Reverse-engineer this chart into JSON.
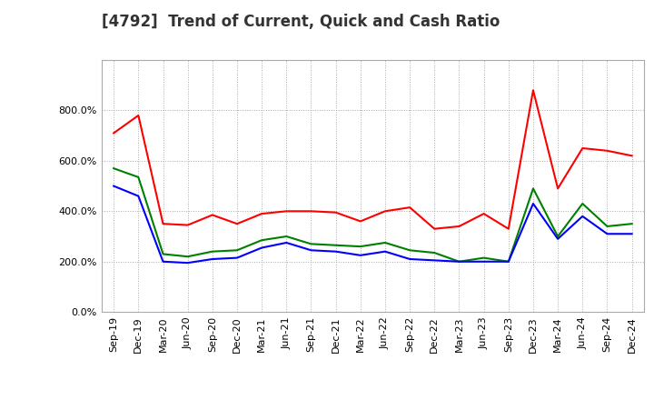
{
  "title": "[4792]  Trend of Current, Quick and Cash Ratio",
  "x_labels": [
    "Sep-19",
    "Dec-19",
    "Mar-20",
    "Jun-20",
    "Sep-20",
    "Dec-20",
    "Mar-21",
    "Jun-21",
    "Sep-21",
    "Dec-21",
    "Mar-22",
    "Jun-22",
    "Sep-22",
    "Dec-22",
    "Mar-23",
    "Jun-23",
    "Sep-23",
    "Dec-23",
    "Mar-24",
    "Jun-24",
    "Sep-24",
    "Dec-24"
  ],
  "current_ratio": [
    710,
    780,
    350,
    345,
    385,
    350,
    390,
    400,
    400,
    395,
    360,
    400,
    415,
    330,
    340,
    390,
    330,
    880,
    490,
    650,
    640,
    620
  ],
  "quick_ratio": [
    570,
    535,
    230,
    220,
    240,
    245,
    285,
    300,
    270,
    265,
    260,
    275,
    245,
    235,
    200,
    215,
    200,
    490,
    300,
    430,
    340,
    350
  ],
  "cash_ratio": [
    500,
    460,
    200,
    195,
    210,
    215,
    255,
    275,
    245,
    240,
    225,
    240,
    210,
    205,
    200,
    200,
    200,
    430,
    290,
    380,
    310,
    310
  ],
  "current_color": "#ff0000",
  "quick_color": "#008000",
  "cash_color": "#0000ff",
  "background_color": "#ffffff",
  "plot_bg_color": "#ffffff",
  "grid_color": "#aaaaaa",
  "ylim": [
    0,
    1000
  ],
  "yticks": [
    0,
    200,
    400,
    600,
    800
  ],
  "title_fontsize": 12,
  "legend_fontsize": 9,
  "tick_fontsize": 8
}
